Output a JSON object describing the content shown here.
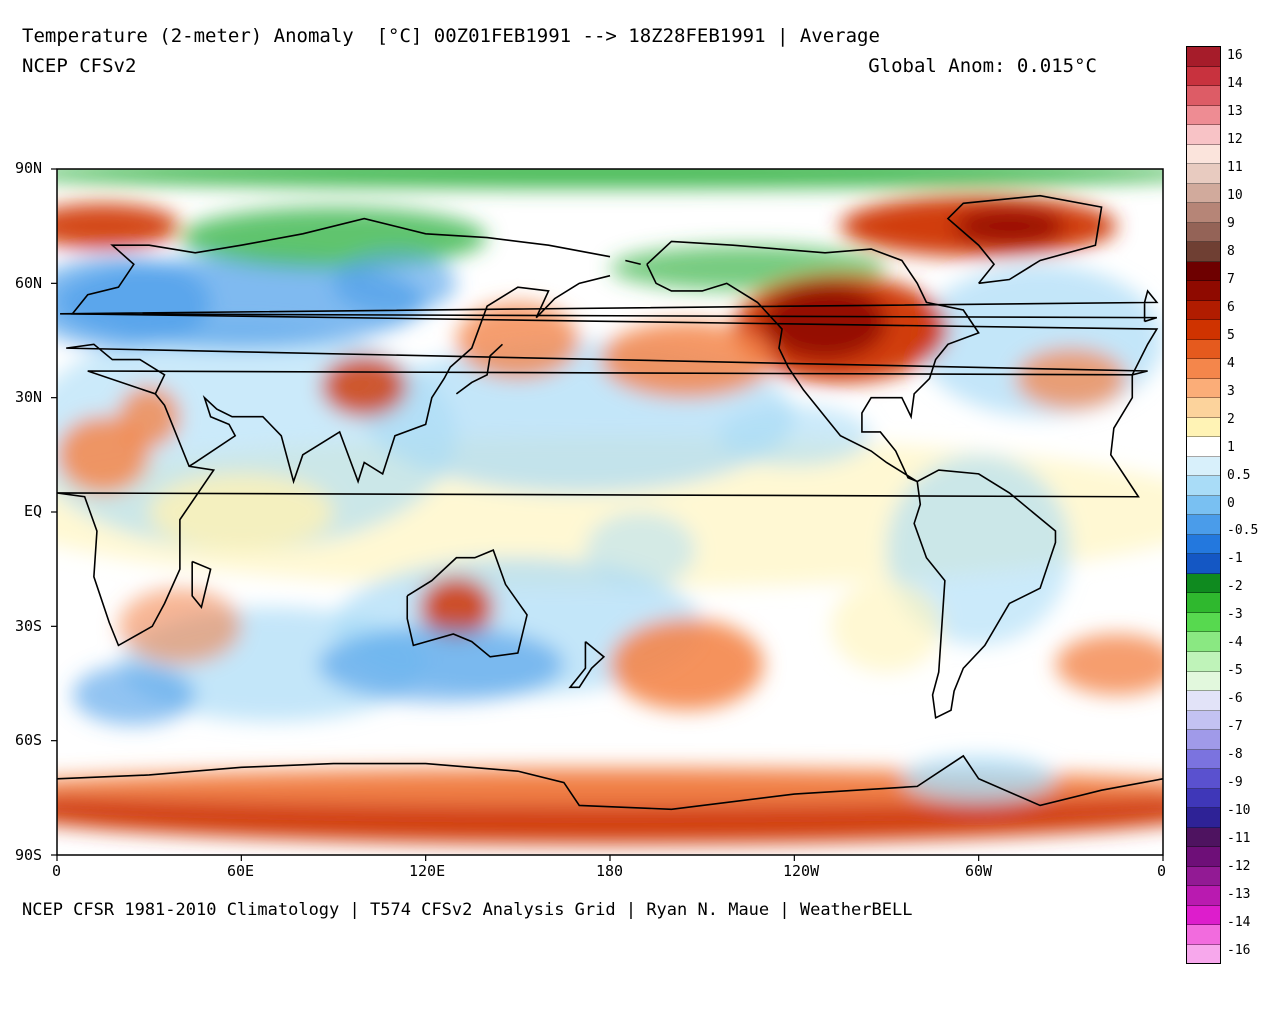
{
  "header": {
    "title": "Temperature (2-meter) Anomaly  [°C] 00Z01FEB1991 --> 18Z28FEB1991 | Average",
    "model": "NCEP CFSv2",
    "global_anom": "Global Anom: 0.015°C"
  },
  "footer": {
    "credit": "NCEP CFSR 1981-2010 Climatology | T574 CFSv2 Analysis Grid | Ryan N. Maue | WeatherBELL"
  },
  "axes": {
    "lat_labels": [
      "90N",
      "60N",
      "30N",
      "EQ",
      "30S",
      "60S",
      "90S"
    ],
    "lon_labels": [
      "0",
      "60E",
      "120E",
      "180",
      "120W",
      "60W",
      "0"
    ]
  },
  "colorbar": {
    "labels": [
      "16",
      "14",
      "13",
      "12",
      "11",
      "10",
      "9",
      "8",
      "7",
      "6",
      "5",
      "4",
      "3",
      "2",
      "1",
      "0.5",
      "0",
      "-0.5",
      "-1",
      "-2",
      "-3",
      "-4",
      "-5",
      "-6",
      "-7",
      "-8",
      "-9",
      "-10",
      "-11",
      "-12",
      "-13",
      "-14",
      "-16"
    ],
    "colors": [
      "#a61c2a",
      "#c8323e",
      "#dd5c66",
      "#ee8c93",
      "#f8c3c6",
      "#fbe4dc",
      "#e8cbc0",
      "#d1aa9c",
      "#b68577",
      "#946357",
      "#6f3f33",
      "#6e0000",
      "#8f0a00",
      "#b11c00",
      "#cf3300",
      "#e55a1e",
      "#f4864b",
      "#fbad78",
      "#fcd39c",
      "#fff3b5",
      "#ffffff",
      "#d8f0fb",
      "#a9dcf7",
      "#79c0f2",
      "#4a9cea",
      "#2378de",
      "#1457c4",
      "#0f8a1f",
      "#2fb82e",
      "#57d94f",
      "#8ae882",
      "#bff3b9",
      "#e2f8dd",
      "#e2e3f8",
      "#c3c2f2",
      "#a09ae9",
      "#7b73df",
      "#5a51cf",
      "#3f37b8",
      "#2e2296",
      "#4e1360",
      "#6e0f78",
      "#921a94",
      "#b91ab0",
      "#dd1dcc",
      "#f26bde",
      "#f7a8ec"
    ]
  },
  "map_field": {
    "description_colors": {
      "arctic_cold": "#3ab54a",
      "cold": "#4a9cea",
      "cool": "#a9dcf7",
      "neutral": "#ffffff",
      "mild": "#fff3b5",
      "warm": "#f4864b",
      "hot": "#cf3300",
      "very_hot": "#8f0a00"
    }
  }
}
